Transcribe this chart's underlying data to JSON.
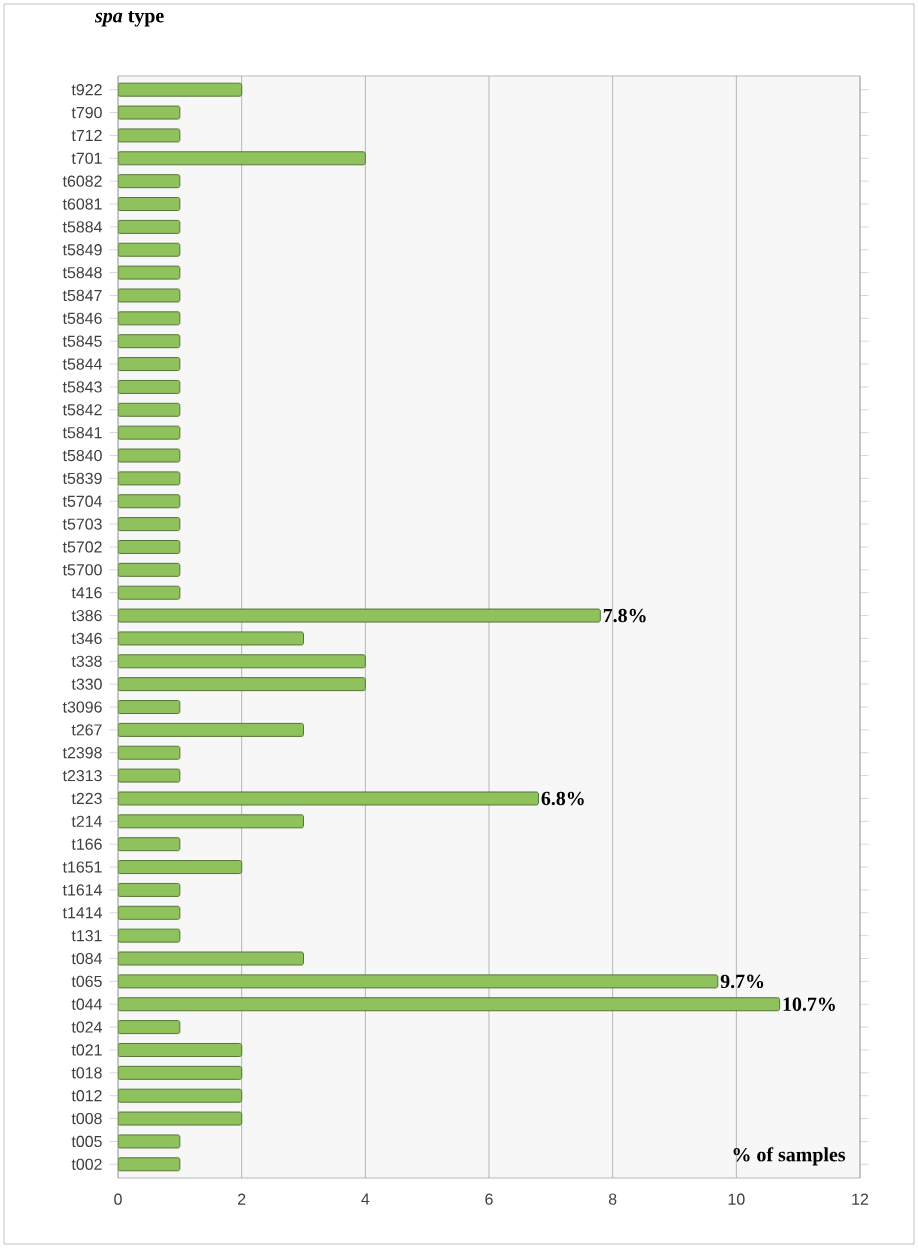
{
  "chart_data": {
    "type": "bar",
    "orientation": "horizontal",
    "title": "*spa* type",
    "xlabel": "% of samples",
    "categories": [
      "t922",
      "t790",
      "t712",
      "t701",
      "t6082",
      "t6081",
      "t5884",
      "t5849",
      "t5848",
      "t5847",
      "t5846",
      "t5845",
      "t5844",
      "t5843",
      "t5842",
      "t5841",
      "t5840",
      "t5839",
      "t5704",
      "t5703",
      "t5702",
      "t5700",
      "t416",
      "t386",
      "t346",
      "t338",
      "t330",
      "t3096",
      "t267",
      "t2398",
      "t2313",
      "t223",
      "t214",
      "t166",
      "t1651",
      "t1614",
      "t1414",
      "t131",
      "t084",
      "t065",
      "t044",
      "t024",
      "t021",
      "t018",
      "t012",
      "t008",
      "t005",
      "t002"
    ],
    "values": [
      2,
      1,
      1,
      4,
      1,
      1,
      1,
      1,
      1,
      1,
      1,
      1,
      1,
      1,
      1,
      1,
      1,
      1,
      1,
      1,
      1,
      1,
      1,
      7.8,
      3,
      4,
      4,
      1,
      3,
      1,
      1,
      6.8,
      3,
      1,
      2,
      1,
      1,
      1,
      3,
      9.7,
      10.7,
      1,
      2,
      2,
      2,
      2,
      1,
      1
    ],
    "value_labels": [
      null,
      null,
      null,
      null,
      null,
      null,
      null,
      null,
      null,
      null,
      null,
      null,
      null,
      null,
      null,
      null,
      null,
      null,
      null,
      null,
      null,
      null,
      null,
      "7.8%",
      null,
      null,
      null,
      null,
      null,
      null,
      null,
      "6.8%",
      null,
      null,
      null,
      null,
      null,
      null,
      null,
      "9.7%",
      "10.7%",
      null,
      null,
      null,
      null,
      null,
      null,
      null
    ],
    "color": "#8fc25c",
    "xlim": [
      0,
      12
    ],
    "xticks": [
      0,
      2,
      4,
      6,
      8,
      10,
      12
    ],
    "grid": "x"
  }
}
